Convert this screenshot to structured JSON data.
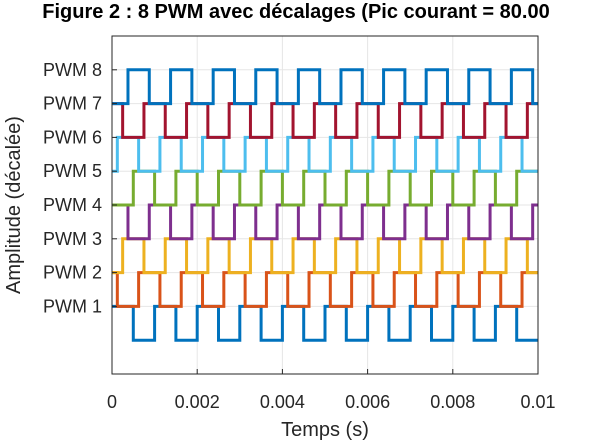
{
  "chart_data": {
    "type": "line",
    "title": "Figure 2 : 8 PWM avec décalages (Pic courant = 80.00",
    "xlabel": "Temps (s)",
    "ylabel": "Amplitude (décalée)",
    "xlim": [
      0,
      0.01
    ],
    "ylim": [
      -1,
      9
    ],
    "x_ticks": [
      0,
      0.002,
      0.004,
      0.006,
      0.008,
      0.01
    ],
    "x_tick_labels": [
      "0",
      "0.002",
      "0.004",
      "0.006",
      "0.008",
      "0.01"
    ],
    "y_ticks": [
      1,
      2,
      3,
      4,
      5,
      6,
      7,
      8
    ],
    "y_tick_labels": [
      "PWM 1",
      "PWM 2",
      "PWM 3",
      "PWM 4",
      "PWM 5",
      "PWM 6",
      "PWM 7",
      "PWM 8"
    ],
    "grid": true,
    "period": 0.001,
    "duty": 0.5,
    "series": [
      {
        "color": "#0072BD",
        "low": 0,
        "high": 1,
        "phase": 0.0
      },
      {
        "color": "#D95319",
        "low": 1,
        "high": 2,
        "phase": 0.000625
      },
      {
        "color": "#EDB120",
        "low": 2,
        "high": 3,
        "phase": 0.00025
      },
      {
        "color": "#7E2F8E",
        "low": 3,
        "high": 4,
        "phase": 0.000875
      },
      {
        "color": "#77AC30",
        "low": 4,
        "high": 5,
        "phase": 0.0005
      },
      {
        "color": "#4DBEEE",
        "low": 5,
        "high": 6,
        "phase": 0.000125
      },
      {
        "color": "#A2142F",
        "low": 6,
        "high": 7,
        "phase": 0.00075
      },
      {
        "color": "#0072BD",
        "low": 7,
        "high": 8,
        "phase": 0.000375
      }
    ]
  }
}
